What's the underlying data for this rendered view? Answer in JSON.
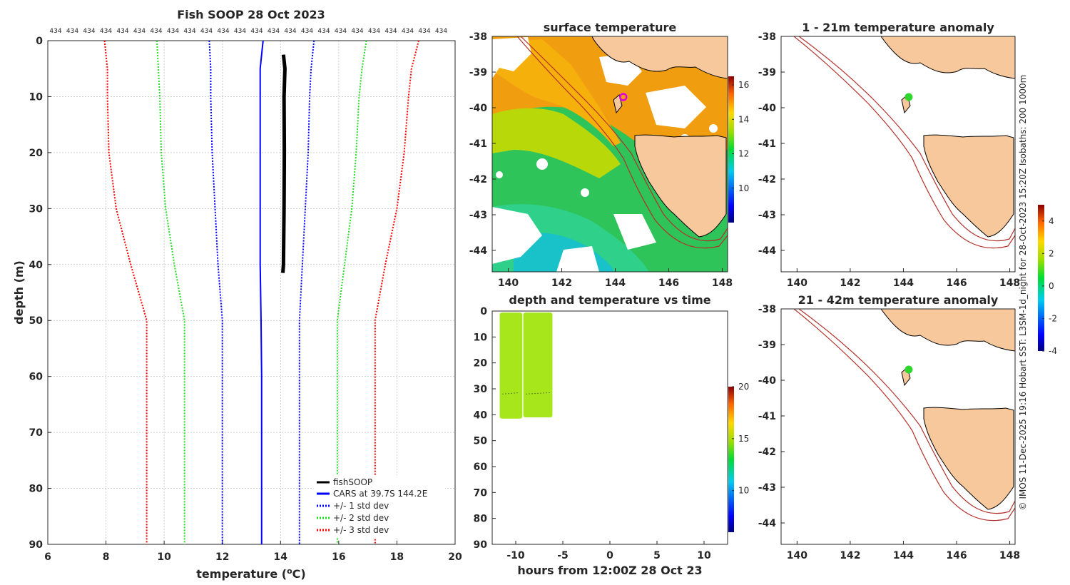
{
  "figure_title": "Fish SOOP 28 Oct 2023",
  "side_note": "© IMOS 11-Dec-2025 19:16 Hobart SST: L3SM-1d_night for 28-Oct-2023 15:20Z Isobaths: 200 1000m",
  "colors": {
    "fishsoop": "#000000",
    "cars": "#0000ff",
    "std1": "#0000ff",
    "std2": "#22dd22",
    "std3": "#ff0000",
    "land": "#f7c89c",
    "isobath": "#b2302a",
    "marker_magenta": "#e000e0",
    "marker_green": "#2ed62e"
  },
  "chart_data": [
    {
      "id": "profile",
      "type": "line",
      "title": "Fish SOOP 28 Oct 2023",
      "xlabel": "temperature (°C)",
      "ylabel": "depth (m)",
      "xlim": [
        6,
        20
      ],
      "ylim": [
        0,
        90
      ],
      "y_inverted": true,
      "xticks": [
        6,
        8,
        10,
        12,
        14,
        16,
        18,
        20
      ],
      "yticks": [
        0,
        10,
        20,
        30,
        40,
        50,
        60,
        70,
        80,
        90
      ],
      "grid": true,
      "top_labels": [
        "434",
        "434",
        "434",
        "434",
        "434",
        "434",
        "434",
        "434",
        "434",
        "434",
        "434",
        "434",
        "434",
        "434",
        "434",
        "434",
        "434",
        "434",
        "434",
        "434",
        "434",
        "434",
        "434",
        "434"
      ],
      "legend_position": "bottom-right",
      "series": [
        {
          "name": "fishSOOP",
          "style": "solid",
          "color": "#000000",
          "width": 5,
          "x": [
            14.1,
            14.15,
            14.12,
            14.13,
            14.12,
            14.1,
            14.08
          ],
          "y": [
            2.5,
            5,
            10,
            20,
            30,
            40,
            41.5
          ]
        },
        {
          "name": "CARS at 39.7S 144.2E",
          "style": "solid",
          "color": "#0000ff",
          "width": 2,
          "x": [
            13.4,
            13.3,
            13.3,
            13.3,
            13.3,
            13.33,
            13.35,
            13.35,
            13.35
          ],
          "y": [
            0,
            5,
            20,
            30,
            40,
            50,
            60,
            80,
            90
          ]
        },
        {
          "name": "+/- 1 std dev",
          "style": "dotted",
          "color": "#0000ff",
          "width": 2,
          "x": [
            11.55,
            11.6,
            11.6,
            11.65,
            11.75,
            11.85,
            12.0,
            12.0,
            12.0
          ],
          "y": [
            0,
            5,
            10,
            20,
            30,
            40,
            50,
            70,
            90
          ],
          "x_upper": [
            15.15,
            15.05,
            15.0,
            14.95,
            14.85,
            14.75,
            14.65,
            14.65,
            14.65
          ],
          "y_upper": [
            0,
            5,
            10,
            20,
            30,
            40,
            50,
            70,
            90
          ]
        },
        {
          "name": "+/- 2 std dev",
          "style": "dotted",
          "color": "#22dd22",
          "width": 2,
          "x": [
            9.75,
            9.8,
            9.85,
            9.9,
            10.05,
            10.35,
            10.7,
            10.7,
            10.7
          ],
          "y": [
            0,
            5,
            10,
            20,
            30,
            40,
            50,
            70,
            90
          ],
          "x_upper": [
            16.95,
            16.8,
            16.7,
            16.6,
            16.45,
            16.2,
            15.95,
            15.95,
            15.95
          ],
          "y_upper": [
            0,
            5,
            10,
            20,
            30,
            40,
            50,
            70,
            90
          ]
        },
        {
          "name": "+/- 3 std dev",
          "style": "dotted",
          "color": "#ff0000",
          "width": 2,
          "x": [
            7.95,
            8.05,
            8.05,
            8.1,
            8.35,
            8.85,
            9.4,
            9.4,
            9.4
          ],
          "y": [
            0,
            5,
            10,
            20,
            30,
            40,
            50,
            70,
            90
          ],
          "x_upper": [
            18.75,
            18.5,
            18.4,
            18.25,
            18.0,
            17.6,
            17.25,
            17.25,
            17.25
          ],
          "y_upper": [
            0,
            5,
            10,
            20,
            30,
            40,
            50,
            70,
            90
          ]
        }
      ]
    },
    {
      "id": "sst_map",
      "type": "heatmap",
      "title": "surface temperature",
      "xlim": [
        139.4,
        148.2
      ],
      "ylim": [
        -44.6,
        -38
      ],
      "xticks": [
        140,
        142,
        144,
        146,
        148
      ],
      "yticks": [
        -38,
        -39,
        -40,
        -41,
        -42,
        -43,
        -44
      ],
      "colorbar": {
        "min": 8,
        "max": 16.5,
        "ticks": [
          10,
          12,
          14,
          16
        ]
      },
      "marker": {
        "lon": 144.3,
        "lat": -39.7,
        "shape": "open-circle"
      }
    },
    {
      "id": "depth_time",
      "type": "scatter",
      "title": "depth and temperature vs time",
      "xlabel": "hours from 12:00Z 28 Oct 23",
      "xlim": [
        -12.5,
        12.5
      ],
      "ylim": [
        0,
        90
      ],
      "y_inverted": true,
      "xticks": [
        -10,
        -5,
        0,
        5,
        10
      ],
      "yticks": [
        0,
        10,
        20,
        30,
        40,
        50,
        60,
        70,
        80,
        90
      ],
      "colorbar": {
        "min": 6,
        "max": 20,
        "ticks": [
          10,
          15,
          20
        ]
      },
      "casts": [
        {
          "t_start": -11.7,
          "t_end": -9.3,
          "depth_max": 41.5,
          "temp": 14.2
        },
        {
          "t_start": -9.2,
          "t_end": -6.1,
          "depth_max": 41,
          "temp": 14.3
        }
      ]
    },
    {
      "id": "anom_shallow",
      "type": "heatmap",
      "title": "1 - 21m temperature anomaly",
      "xlim": [
        139.4,
        148.2
      ],
      "ylim": [
        -44.6,
        -38
      ],
      "xticks": [
        140,
        142,
        144,
        146,
        148
      ],
      "yticks": [
        -38,
        -39,
        -40,
        -41,
        -42,
        -43,
        -44
      ],
      "colorbar": {
        "min": -4,
        "max": 5,
        "ticks": [
          -4,
          -2,
          0,
          2,
          4
        ]
      },
      "marker": {
        "lon": 144.2,
        "lat": -39.7,
        "anomaly": 0.3
      }
    },
    {
      "id": "anom_deep",
      "type": "heatmap",
      "title": "21 - 42m temperature anomaly",
      "xlim": [
        139.4,
        148.2
      ],
      "ylim": [
        -44.6,
        -38
      ],
      "xticks": [
        140,
        142,
        144,
        146,
        148
      ],
      "yticks": [
        -38,
        -39,
        -40,
        -41,
        -42,
        -43,
        -44
      ],
      "marker": {
        "lon": 144.2,
        "lat": -39.7,
        "anomaly": 0.2
      }
    }
  ]
}
